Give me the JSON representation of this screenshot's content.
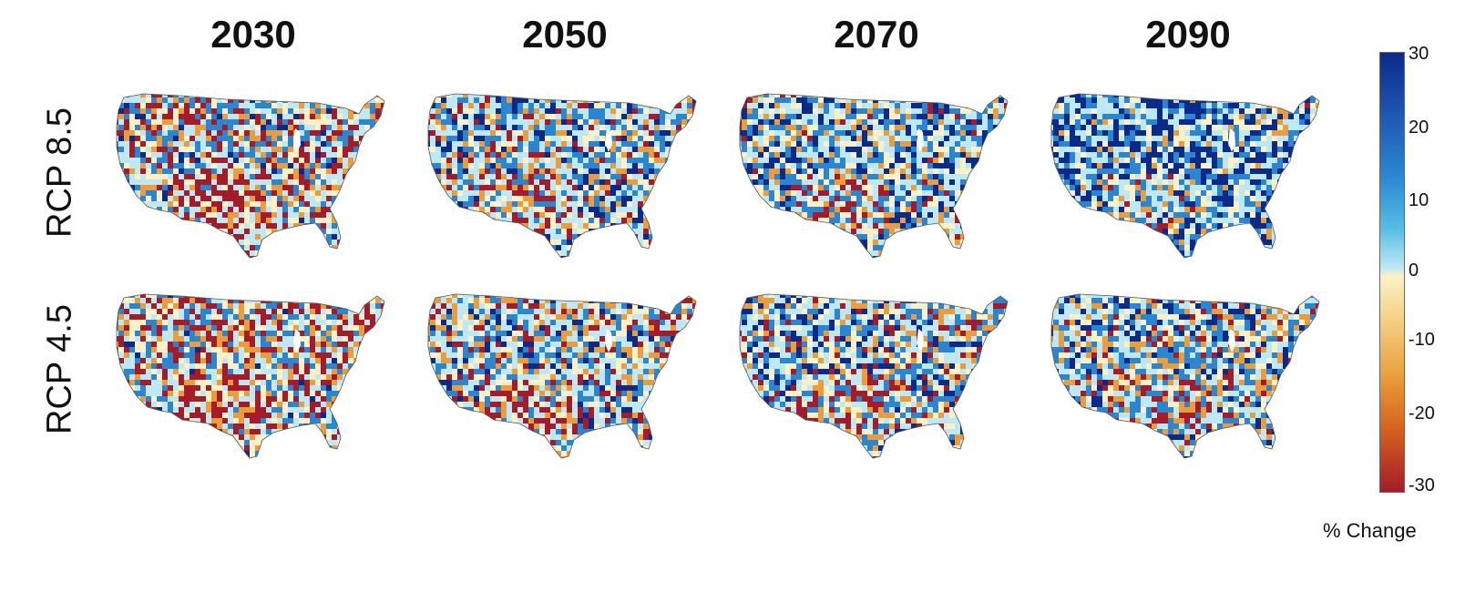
{
  "figure": {
    "column_titles": [
      "2030",
      "2050",
      "2070",
      "2090"
    ],
    "row_labels": [
      "RCP 8.5",
      "RCP 4.5"
    ],
    "colorbar": {
      "label": "% Change",
      "ticks": [
        "30",
        "20",
        "10",
        "0",
        "-10",
        "-20",
        "-30"
      ],
      "range": [
        -30,
        30
      ],
      "colors": [
        "#0b2a8a",
        "#2b86d1",
        "#bde8f4",
        "#fcf1c6",
        "#ea9d3a",
        "#a51b2a"
      ]
    },
    "panels": [
      {
        "row": "RCP 8.5",
        "year": "2030",
        "wetness": 0.35
      },
      {
        "row": "RCP 8.5",
        "year": "2050",
        "wetness": 0.5
      },
      {
        "row": "RCP 8.5",
        "year": "2070",
        "wetness": 0.62
      },
      {
        "row": "RCP 8.5",
        "year": "2090",
        "wetness": 0.78
      },
      {
        "row": "RCP 4.5",
        "year": "2030",
        "wetness": 0.3
      },
      {
        "row": "RCP 4.5",
        "year": "2050",
        "wetness": 0.45
      },
      {
        "row": "RCP 4.5",
        "year": "2070",
        "wetness": 0.5
      },
      {
        "row": "RCP 4.5",
        "year": "2090",
        "wetness": 0.52
      }
    ]
  }
}
